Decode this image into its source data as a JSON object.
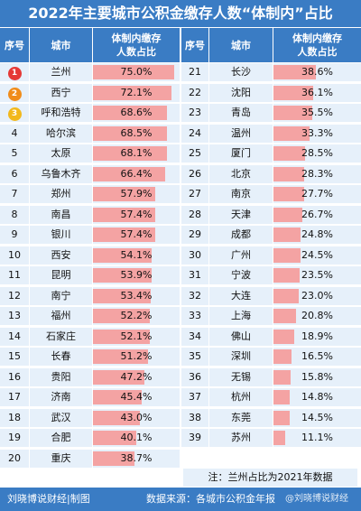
{
  "title": "2022年主要城市公积金缴存人数“体制内”占比",
  "header": {
    "rank_label": "序号",
    "city_label": "城市",
    "value_label": "体制内缴存\n人数占比"
  },
  "chart_data": {
    "type": "table",
    "left_rows": [
      {
        "rank": "1",
        "city": "兰州",
        "value": 75.0,
        "label": "75.0%"
      },
      {
        "rank": "2",
        "city": "西宁",
        "value": 72.1,
        "label": "72.1%"
      },
      {
        "rank": "3",
        "city": "呼和浩特",
        "value": 68.6,
        "label": "68.6%"
      },
      {
        "rank": "4",
        "city": "哈尔滨",
        "value": 68.5,
        "label": "68.5%"
      },
      {
        "rank": "5",
        "city": "太原",
        "value": 68.1,
        "label": "68.1%"
      },
      {
        "rank": "6",
        "city": "乌鲁木齐",
        "value": 66.4,
        "label": "66.4%"
      },
      {
        "rank": "7",
        "city": "郑州",
        "value": 57.9,
        "label": "57.9%"
      },
      {
        "rank": "8",
        "city": "南昌",
        "value": 57.4,
        "label": "57.4%"
      },
      {
        "rank": "9",
        "city": "银川",
        "value": 57.4,
        "label": "57.4%"
      },
      {
        "rank": "10",
        "city": "西安",
        "value": 54.1,
        "label": "54.1%"
      },
      {
        "rank": "11",
        "city": "昆明",
        "value": 53.9,
        "label": "53.9%"
      },
      {
        "rank": "12",
        "city": "南宁",
        "value": 53.4,
        "label": "53.4%"
      },
      {
        "rank": "13",
        "city": "福州",
        "value": 52.2,
        "label": "52.2%"
      },
      {
        "rank": "14",
        "city": "石家庄",
        "value": 52.1,
        "label": "52.1%"
      },
      {
        "rank": "15",
        "city": "长春",
        "value": 51.2,
        "label": "51.2%"
      },
      {
        "rank": "16",
        "city": "贵阳",
        "value": 47.2,
        "label": "47.2%"
      },
      {
        "rank": "17",
        "city": "济南",
        "value": 45.4,
        "label": "45.4%"
      },
      {
        "rank": "18",
        "city": "武汉",
        "value": 43.0,
        "label": "43.0%"
      },
      {
        "rank": "19",
        "city": "合肥",
        "value": 40.1,
        "label": "40.1%"
      },
      {
        "rank": "20",
        "city": "重庆",
        "value": 38.7,
        "label": "38.7%"
      }
    ],
    "right_rows": [
      {
        "rank": "21",
        "city": "长沙",
        "value": 38.6,
        "label": "38.6%"
      },
      {
        "rank": "22",
        "city": "沈阳",
        "value": 36.1,
        "label": "36.1%"
      },
      {
        "rank": "23",
        "city": "青岛",
        "value": 35.5,
        "label": "35.5%"
      },
      {
        "rank": "24",
        "city": "温州",
        "value": 33.3,
        "label": "33.3%"
      },
      {
        "rank": "25",
        "city": "厦门",
        "value": 28.5,
        "label": "28.5%"
      },
      {
        "rank": "26",
        "city": "北京",
        "value": 28.3,
        "label": "28.3%"
      },
      {
        "rank": "27",
        "city": "南京",
        "value": 27.7,
        "label": "27.7%"
      },
      {
        "rank": "28",
        "city": "天津",
        "value": 26.7,
        "label": "26.7%"
      },
      {
        "rank": "29",
        "city": "成都",
        "value": 24.8,
        "label": "24.8%"
      },
      {
        "rank": "30",
        "city": "广州",
        "value": 24.5,
        "label": "24.5%"
      },
      {
        "rank": "31",
        "city": "宁波",
        "value": 23.5,
        "label": "23.5%"
      },
      {
        "rank": "32",
        "city": "大连",
        "value": 23.0,
        "label": "23.0%"
      },
      {
        "rank": "33",
        "city": "上海",
        "value": 20.8,
        "label": "20.8%"
      },
      {
        "rank": "34",
        "city": "佛山",
        "value": 18.9,
        "label": "18.9%"
      },
      {
        "rank": "35",
        "city": "深圳",
        "value": 16.5,
        "label": "16.5%"
      },
      {
        "rank": "36",
        "city": "无锡",
        "value": 15.8,
        "label": "15.8%"
      },
      {
        "rank": "37",
        "city": "杭州",
        "value": 14.8,
        "label": "14.8%"
      },
      {
        "rank": "38",
        "city": "东莞",
        "value": 14.5,
        "label": "14.5%"
      },
      {
        "rank": "39",
        "city": "苏州",
        "value": 11.1,
        "label": "11.1%"
      }
    ],
    "bar_max": 75.0
  },
  "note": "注：兰州占比为2021年数据",
  "footer": {
    "author": "刘晓博说财经|制图",
    "source": "数据来源：各城市公积金年报",
    "watermark": "@刘晓博说财经"
  },
  "colors": {
    "header": "#3a7cc4",
    "row": "#e6f0fa",
    "bar": "#f4a3a3",
    "medal_1": "#e53935",
    "medal_2": "#f08c1a",
    "medal_3": "#f2b81c"
  }
}
